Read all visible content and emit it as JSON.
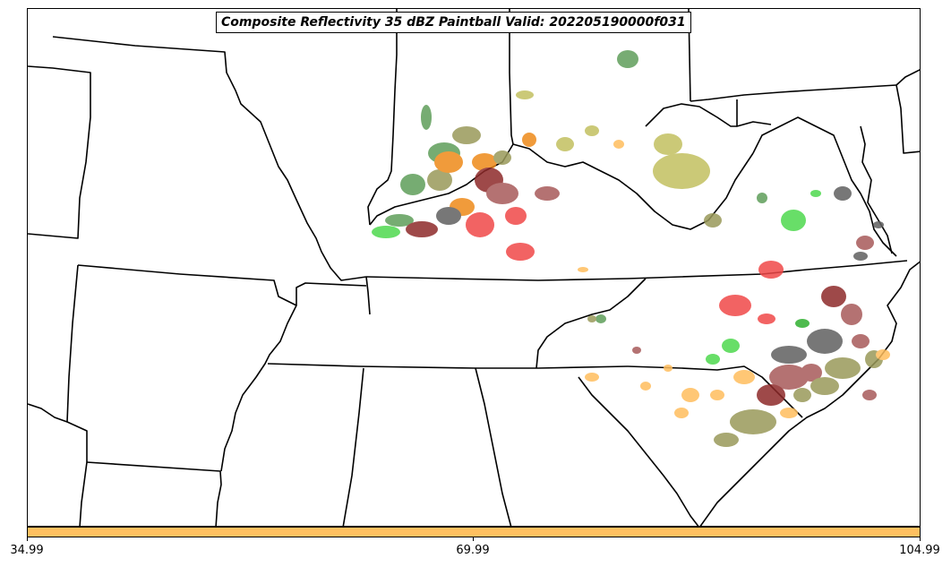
{
  "title": "Composite Reflectivity 35 dBZ Paintball Valid: 202205190000f031",
  "colorbar": {
    "color": "#ffc060",
    "ticks": [
      "34.99",
      "69.99",
      "104.99"
    ]
  },
  "palette": {
    "dark-green": "#5f9e5a",
    "light-green": "#4ed94e",
    "olive": "#9a9a5a",
    "yellow-olive": "#c2c060",
    "orange": "#ee8a1a",
    "light-orange": "#ffbe5e",
    "red": "#f04848",
    "dark-red": "#8e2a2a",
    "brown-red": "#a85a5a",
    "gray": "#606060",
    "green": "#30b030"
  }
}
